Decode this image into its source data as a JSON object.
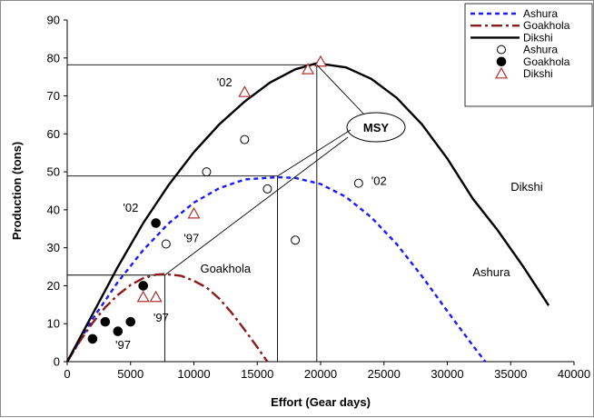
{
  "chart_data": {
    "type": "scatter",
    "xlabel": "Effort (Gear days)",
    "ylabel": "Production (tons)",
    "xlim": [
      0,
      40000
    ],
    "ylim": [
      0,
      90
    ],
    "xticks": [
      0,
      5000,
      10000,
      15000,
      20000,
      25000,
      30000,
      35000,
      40000
    ],
    "yticks": [
      0,
      10,
      20,
      30,
      40,
      50,
      60,
      70,
      80,
      90
    ],
    "grid": false,
    "legend_position": "top-right",
    "curves": [
      {
        "name": "Ashura",
        "style": "dashed",
        "color": "#1a1aff",
        "points": [
          [
            0,
            0
          ],
          [
            2000,
            11.2
          ],
          [
            4000,
            21
          ],
          [
            6000,
            29.4
          ],
          [
            8000,
            36.4
          ],
          [
            10000,
            41.9
          ],
          [
            12000,
            45.7
          ],
          [
            14000,
            48.0
          ],
          [
            16600,
            48.6
          ],
          [
            18000,
            48.4
          ],
          [
            20000,
            46.8
          ],
          [
            22000,
            43.4
          ],
          [
            24000,
            38.0
          ],
          [
            26000,
            31.0
          ],
          [
            28000,
            22.5
          ],
          [
            30000,
            13.3
          ],
          [
            32000,
            4.3
          ],
          [
            33000,
            0
          ]
        ]
      },
      {
        "name": "Goakhola",
        "style": "dash-dot",
        "color": "#8b1a1a",
        "points": [
          [
            0,
            0
          ],
          [
            1000,
            5.4
          ],
          [
            2000,
            10.2
          ],
          [
            3000,
            14.3
          ],
          [
            4000,
            17.6
          ],
          [
            5000,
            20.2
          ],
          [
            6000,
            22.0
          ],
          [
            7000,
            22.9
          ],
          [
            7700,
            23.1
          ],
          [
            9000,
            22.6
          ],
          [
            10000,
            21.3
          ],
          [
            11000,
            19.5
          ],
          [
            12000,
            16.6
          ],
          [
            13000,
            12.8
          ],
          [
            14000,
            8.4
          ],
          [
            15000,
            3.8
          ],
          [
            15800,
            0
          ]
        ]
      },
      {
        "name": "Dikshi",
        "style": "solid",
        "color": "#000000",
        "points": [
          [
            0,
            0
          ],
          [
            2000,
            12.5
          ],
          [
            4000,
            25
          ],
          [
            6000,
            36.5
          ],
          [
            8000,
            46.5
          ],
          [
            10000,
            55.2
          ],
          [
            12000,
            62.5
          ],
          [
            14000,
            68.5
          ],
          [
            16000,
            73.5
          ],
          [
            18000,
            77
          ],
          [
            19700,
            78.6
          ],
          [
            22000,
            77.5
          ],
          [
            24000,
            74.5
          ],
          [
            26000,
            69.5
          ],
          [
            28000,
            62.5
          ],
          [
            30000,
            53.5
          ],
          [
            32000,
            43
          ],
          [
            34000,
            34.5
          ],
          [
            36000,
            25
          ],
          [
            38000,
            14.8
          ]
        ]
      }
    ],
    "series": [
      {
        "name": "Ashura",
        "marker": "open-circle",
        "points": [
          [
            7800,
            31
          ],
          [
            11000,
            50
          ],
          [
            14000,
            58.5
          ],
          [
            15800,
            45.5
          ],
          [
            18000,
            32
          ],
          [
            23000,
            47
          ]
        ]
      },
      {
        "name": "Goakhola",
        "marker": "filled-circle",
        "points": [
          [
            2000,
            6
          ],
          [
            3000,
            10.5
          ],
          [
            4000,
            8
          ],
          [
            5000,
            10.5
          ],
          [
            6000,
            20
          ],
          [
            7000,
            36.5
          ]
        ]
      },
      {
        "name": "Dikshi",
        "marker": "open-triangle",
        "points": [
          [
            6000,
            17
          ],
          [
            7000,
            17
          ],
          [
            10000,
            39
          ],
          [
            14000,
            71
          ],
          [
            19000,
            77
          ],
          [
            20000,
            79
          ]
        ]
      }
    ],
    "msy_lines": [
      {
        "name": "Dikshi",
        "x": 19700,
        "y": 78.2
      },
      {
        "name": "Ashura",
        "x": 16600,
        "y": 48.9
      },
      {
        "name": "Goakhola",
        "x": 7700,
        "y": 22.8
      }
    ],
    "annotations": {
      "msy": "MSY",
      "labels": [
        {
          "text": "'02",
          "x": 11800,
          "y": 72.5
        },
        {
          "text": "'02",
          "x": 24000,
          "y": 46.5
        },
        {
          "text": "'02",
          "x": 4400,
          "y": 39.5
        },
        {
          "text": "'97",
          "x": 9200,
          "y": 31.5
        },
        {
          "text": "'97",
          "x": 6800,
          "y": 10.5
        },
        {
          "text": "'97",
          "x": 3800,
          "y": 3.3
        },
        {
          "text": "Goakhola",
          "x": 10500,
          "y": 23.5
        },
        {
          "text": "Ashura",
          "x": 32000,
          "y": 22.5
        },
        {
          "text": "Dikshi",
          "x": 35000,
          "y": 45
        }
      ]
    },
    "legend": [
      {
        "label": "Ashura",
        "kind": "line",
        "style": "dashed",
        "color": "#1a1aff"
      },
      {
        "label": "Goakhola",
        "kind": "line",
        "style": "dash-dot",
        "color": "#8b1a1a"
      },
      {
        "label": "Dikshi",
        "kind": "line",
        "style": "solid",
        "color": "#000000"
      },
      {
        "label": "Ashura",
        "kind": "marker",
        "marker": "open-circle"
      },
      {
        "label": "Goakhola",
        "kind": "marker",
        "marker": "filled-circle"
      },
      {
        "label": "Dikshi",
        "kind": "marker",
        "marker": "open-triangle"
      }
    ]
  }
}
